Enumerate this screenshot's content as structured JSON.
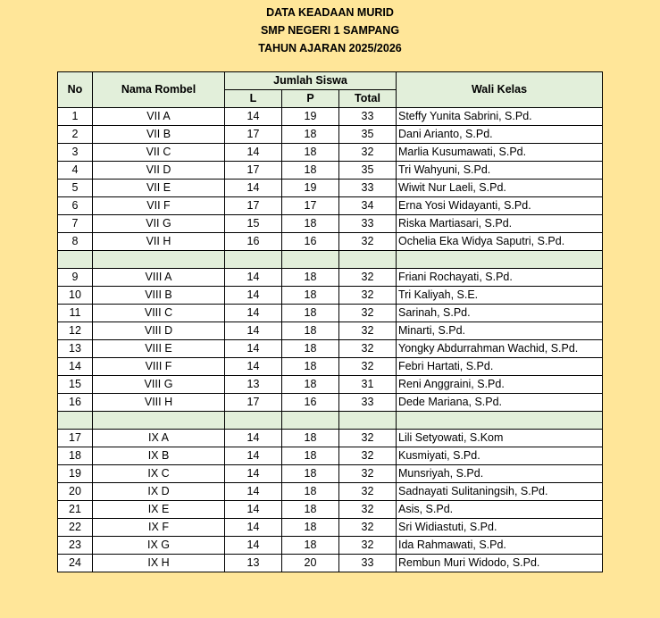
{
  "title": {
    "line1": "DATA KEADAAN MURID",
    "line2": "SMP NEGERI 1 SAMPANG",
    "line3": "TAHUN AJARAN 2025/2026"
  },
  "colors": {
    "background": "#FFE699",
    "header_fill": "#E2EFDA"
  },
  "table": {
    "headers": {
      "no": "No",
      "nama_rombel": "Nama Rombel",
      "jumlah_siswa": "Jumlah Siswa",
      "l": "L",
      "p": "P",
      "total": "Total",
      "wali_kelas": "Wali Kelas"
    },
    "groups": [
      [
        {
          "no": "1",
          "rombel": "VII A",
          "l": "14",
          "p": "19",
          "total": "33",
          "wali": "Steffy Yunita Sabrini, S.Pd."
        },
        {
          "no": "2",
          "rombel": "VII B",
          "l": "17",
          "p": "18",
          "total": "35",
          "wali": "Dani Arianto, S.Pd."
        },
        {
          "no": "3",
          "rombel": "VII C",
          "l": "14",
          "p": "18",
          "total": "32",
          "wali": "Marlia Kusumawati, S.Pd."
        },
        {
          "no": "4",
          "rombel": "VII D",
          "l": "17",
          "p": "18",
          "total": "35",
          "wali": "Tri Wahyuni, S.Pd."
        },
        {
          "no": "5",
          "rombel": "VII E",
          "l": "14",
          "p": "19",
          "total": "33",
          "wali": "Wiwit Nur Laeli, S.Pd."
        },
        {
          "no": "6",
          "rombel": "VII F",
          "l": "17",
          "p": "17",
          "total": "34",
          "wali": "Erna Yosi Widayanti, S.Pd."
        },
        {
          "no": "7",
          "rombel": "VII G",
          "l": "15",
          "p": "18",
          "total": "33",
          "wali": "Riska Martiasari, S.Pd."
        },
        {
          "no": "8",
          "rombel": "VII H",
          "l": "16",
          "p": "16",
          "total": "32",
          "wali": "Ochelia Eka Widya Saputri, S.Pd."
        }
      ],
      [
        {
          "no": "9",
          "rombel": "VIII A",
          "l": "14",
          "p": "18",
          "total": "32",
          "wali": "Friani Rochayati, S.Pd."
        },
        {
          "no": "10",
          "rombel": "VIII B",
          "l": "14",
          "p": "18",
          "total": "32",
          "wali": "Tri Kaliyah, S.E."
        },
        {
          "no": "11",
          "rombel": "VIII C",
          "l": "14",
          "p": "18",
          "total": "32",
          "wali": "Sarinah, S.Pd."
        },
        {
          "no": "12",
          "rombel": "VIII D",
          "l": "14",
          "p": "18",
          "total": "32",
          "wali": "Minarti, S.Pd."
        },
        {
          "no": "13",
          "rombel": "VIII E",
          "l": "14",
          "p": "18",
          "total": "32",
          "wali": "Yongky Abdurrahman Wachid, S.Pd."
        },
        {
          "no": "14",
          "rombel": "VIII F",
          "l": "14",
          "p": "18",
          "total": "32",
          "wali": "Febri Hartati, S.Pd."
        },
        {
          "no": "15",
          "rombel": "VIII G",
          "l": "13",
          "p": "18",
          "total": "31",
          "wali": "Reni Anggraini, S.Pd."
        },
        {
          "no": "16",
          "rombel": "VIII H",
          "l": "17",
          "p": "16",
          "total": "33",
          "wali": "Dede Mariana, S.Pd."
        }
      ],
      [
        {
          "no": "17",
          "rombel": "IX A",
          "l": "14",
          "p": "18",
          "total": "32",
          "wali": "Lili Setyowati, S.Kom"
        },
        {
          "no": "18",
          "rombel": "IX B",
          "l": "14",
          "p": "18",
          "total": "32",
          "wali": "Kusmiyati, S.Pd."
        },
        {
          "no": "19",
          "rombel": "IX C",
          "l": "14",
          "p": "18",
          "total": "32",
          "wali": "Munsriyah, S.Pd."
        },
        {
          "no": "20",
          "rombel": "IX D",
          "l": "14",
          "p": "18",
          "total": "32",
          "wali": "Sadnayati Sulitaningsih, S.Pd."
        },
        {
          "no": "21",
          "rombel": "IX E",
          "l": "14",
          "p": "18",
          "total": "32",
          "wali": "Asis, S.Pd."
        },
        {
          "no": "22",
          "rombel": "IX F",
          "l": "14",
          "p": "18",
          "total": "32",
          "wali": "Sri Widiastuti, S.Pd."
        },
        {
          "no": "23",
          "rombel": "IX G",
          "l": "14",
          "p": "18",
          "total": "32",
          "wali": "Ida Rahmawati, S.Pd."
        },
        {
          "no": "24",
          "rombel": "IX H",
          "l": "13",
          "p": "20",
          "total": "33",
          "wali": "Rembun Muri Widodo, S.Pd."
        }
      ]
    ]
  }
}
